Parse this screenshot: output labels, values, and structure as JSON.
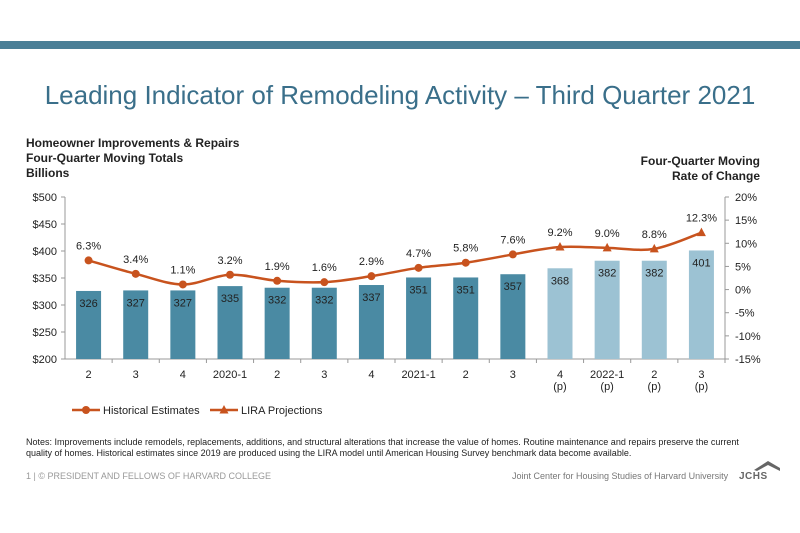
{
  "title": "Leading Indicator of Remodeling Activity – Third Quarter 2021",
  "left_axis_title": [
    "Homeowner Improvements & Repairs",
    "Four-Quarter Moving Totals",
    "Billions"
  ],
  "right_axis_title": [
    "Four-Quarter Moving",
    "Rate of Change"
  ],
  "notes": "Notes: Improvements include remodels, replacements, additions, and structural alterations that increase the value of homes. Routine maintenance and repairs preserve the current quality of homes. Historical estimates since 2019 are produced using the LIRA model until American Housing Survey benchmark data become available.",
  "footer_left": "1 | © PRESIDENT AND FELLOWS OF HARVARD COLLEGE",
  "footer_right": "Joint Center for Housing Studies of Harvard University",
  "logo_text": "JCHS",
  "colors": {
    "topbar": "#4a7f97",
    "bar_historical": "#4a8aa3",
    "bar_projection": "#9cc2d3",
    "line": "#c8531e",
    "title": "#3a6f8a"
  },
  "chart_data": {
    "type": "bar",
    "categories": [
      "2",
      "3",
      "4",
      "2020-1",
      "2",
      "3",
      "4",
      "2021-1",
      "2",
      "3",
      "4",
      "2022-1",
      "2",
      "3"
    ],
    "projection_marks": [
      "",
      "",
      "",
      "",
      "",
      "",
      "",
      "",
      "",
      "",
      "(p)",
      "(p)",
      "(p)",
      "(p)"
    ],
    "bars": [
      326,
      327,
      327,
      335,
      332,
      332,
      337,
      351,
      351,
      357,
      368,
      382,
      382,
      401
    ],
    "rates": [
      6.3,
      3.4,
      1.1,
      3.2,
      1.9,
      1.6,
      2.9,
      4.7,
      5.8,
      7.6,
      9.2,
      9.0,
      8.8,
      12.3
    ],
    "rate_labels": [
      "6.3%",
      "3.4%",
      "1.1%",
      "3.2%",
      "1.9%",
      "1.6%",
      "2.9%",
      "4.7%",
      "5.8%",
      "7.6%",
      "9.2%",
      "9.0%",
      "8.8%",
      "12.3%"
    ],
    "projection_start_index": 10,
    "y_left": {
      "min": 200,
      "max": 500,
      "ticks": [
        "$200",
        "$250",
        "$300",
        "$350",
        "$400",
        "$450",
        "$500"
      ]
    },
    "y_right": {
      "min": -15,
      "max": 20,
      "ticks": [
        "-15%",
        "-10%",
        "-5%",
        "0%",
        "5%",
        "10%",
        "15%",
        "20%"
      ]
    },
    "legend": [
      "Historical Estimates",
      "LIRA Projections"
    ],
    "legend_position": "bottom-left"
  }
}
